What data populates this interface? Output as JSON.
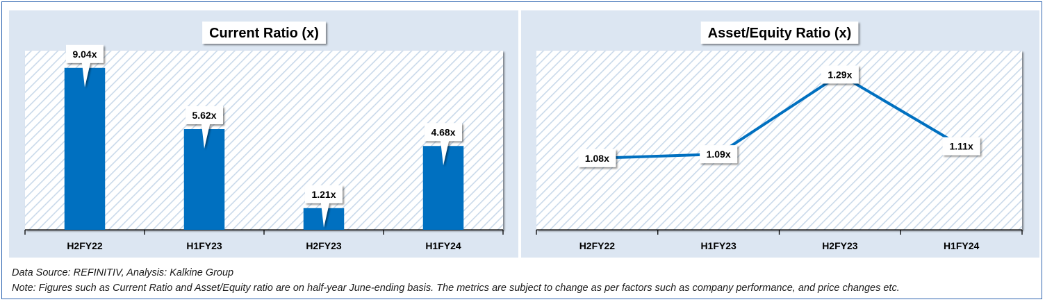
{
  "chart_data": [
    {
      "type": "bar",
      "title": "Current Ratio (x)",
      "categories": [
        "H2FY22",
        "H1FY23",
        "H2FY23",
        "H1FY24"
      ],
      "values": [
        9.04,
        5.62,
        1.21,
        4.68
      ],
      "labels": [
        "9.04x",
        "5.62x",
        "1.21x",
        "4.68x"
      ],
      "ylim": [
        0,
        10
      ],
      "color": "#0070c0",
      "grid": false,
      "legend": "none"
    },
    {
      "type": "line",
      "title": "Asset/Equity Ratio (x)",
      "categories": [
        "H2FY22",
        "H1FY23",
        "H2FY23",
        "H1FY24"
      ],
      "values": [
        1.08,
        1.09,
        1.29,
        1.11
      ],
      "labels": [
        "1.08x",
        "1.09x",
        "1.29x",
        "1.11x"
      ],
      "ylim": [
        0.9,
        1.35
      ],
      "color": "#0070c0",
      "grid": false,
      "legend": "none"
    }
  ],
  "footer": {
    "source": "Data Source: REFINITIV, Analysis: Kalkine Group",
    "note": "Note: Figures such as Current Ratio and Asset/Equity ratio are on half-year June-ending basis. The metrics are subject to change as per factors such as company performance, and price changes etc."
  }
}
